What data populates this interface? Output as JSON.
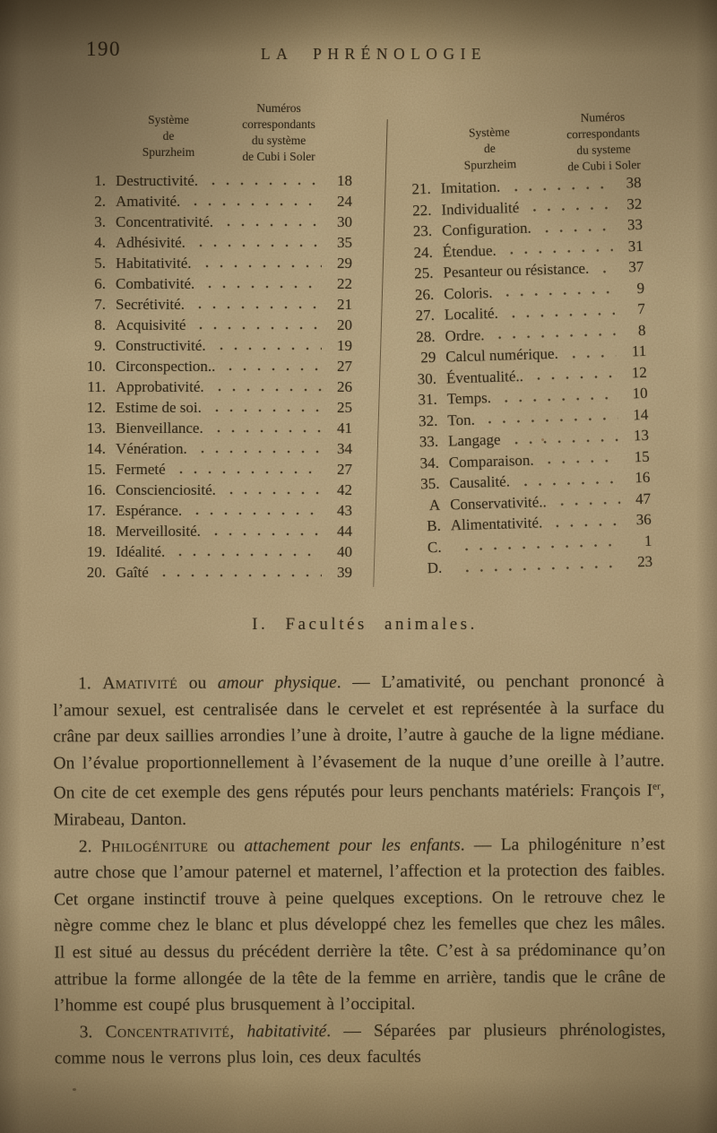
{
  "page": {
    "number": "190",
    "title": "LA PHRÉNOLOGIE"
  },
  "tables": {
    "left": {
      "header_col1": [
        "Système",
        "de",
        "Spurzheim"
      ],
      "header_col2": [
        "Numéros",
        "correspondants",
        "du système",
        "de Cubi i Soler"
      ],
      "rows": [
        {
          "num": "1.",
          "label": "Destructivité.",
          "value": "18"
        },
        {
          "num": "2.",
          "label": "Amativité.",
          "value": "24"
        },
        {
          "num": "3.",
          "label": "Concentrativité.",
          "value": "30"
        },
        {
          "num": "4.",
          "label": "Adhésivité.",
          "value": "35"
        },
        {
          "num": "5.",
          "label": "Habitativité.",
          "value": "29"
        },
        {
          "num": "6.",
          "label": "Combativité.",
          "value": "22"
        },
        {
          "num": "7.",
          "label": "Secrétivité.",
          "value": "21"
        },
        {
          "num": "8.",
          "label": "Acquisivité",
          "value": "20"
        },
        {
          "num": "9.",
          "label": "Constructivité.",
          "value": "19"
        },
        {
          "num": "10.",
          "label": "Circonspection..",
          "value": "27"
        },
        {
          "num": "11.",
          "label": "Approbativité.",
          "value": "26"
        },
        {
          "num": "12.",
          "label": "Estime de soi.",
          "value": "25"
        },
        {
          "num": "13.",
          "label": "Bienveillance.",
          "value": "41"
        },
        {
          "num": "14.",
          "label": "Vénération.",
          "value": "34"
        },
        {
          "num": "15.",
          "label": "Fermeté",
          "value": "27"
        },
        {
          "num": "16.",
          "label": "Conscienciosité.",
          "value": "42"
        },
        {
          "num": "17.",
          "label": "Espérance.",
          "value": "43"
        },
        {
          "num": "18.",
          "label": "Merveillosité.",
          "value": "44"
        },
        {
          "num": "19.",
          "label": "Idéalité.",
          "value": "40"
        },
        {
          "num": "20.",
          "label": "Gaîté",
          "value": "39"
        }
      ]
    },
    "right": {
      "header_col1": [
        "Système",
        "de",
        "Spurzheim"
      ],
      "header_col2": [
        "Numéros",
        "correspondants",
        "du systeme",
        "de Cubi i Soler"
      ],
      "rows": [
        {
          "num": "21.",
          "label": "Imitation.",
          "value": "38"
        },
        {
          "num": "22.",
          "label": "Individualité",
          "value": "32"
        },
        {
          "num": "23.",
          "label": "Configuration.",
          "value": "33"
        },
        {
          "num": "24.",
          "label": "Étendue.",
          "value": "31"
        },
        {
          "num": "25.",
          "label": "Pesanteur ou résistance.",
          "value": "37"
        },
        {
          "num": "26.",
          "label": "Coloris.",
          "value": "9"
        },
        {
          "num": "27.",
          "label": "Localité.",
          "value": "7"
        },
        {
          "num": "28.",
          "label": "Ordre.",
          "value": "8"
        },
        {
          "num": "29",
          "label": "Calcul numérique.",
          "value": "11"
        },
        {
          "num": "30.",
          "label": "Éventualité..",
          "value": "12"
        },
        {
          "num": "31.",
          "label": "Temps.",
          "value": "10"
        },
        {
          "num": "32.",
          "label": "Ton.",
          "value": "14"
        },
        {
          "num": "33.",
          "label": "Langage",
          "value": "13"
        },
        {
          "num": "34.",
          "label": "Comparaison.",
          "value": "15"
        },
        {
          "num": "35.",
          "label": "Causalité.",
          "value": "16"
        },
        {
          "num": "A",
          "label": "Conservativité..",
          "value": "47"
        },
        {
          "num": "B.",
          "label": "Alimentativité.",
          "value": "36"
        },
        {
          "num": "C.",
          "label": "",
          "value": "1"
        },
        {
          "num": "D.",
          "label": "",
          "value": "23"
        }
      ]
    }
  },
  "section": {
    "heading": "I. Facultés animales."
  },
  "paragraphs": [
    {
      "segments": [
        {
          "style": "normal",
          "text": "1. "
        },
        {
          "style": "smallcaps",
          "text": "Amativité"
        },
        {
          "style": "normal",
          "text": " ou "
        },
        {
          "style": "italic",
          "text": "amour physique"
        },
        {
          "style": "normal",
          "text": ". — L’amativité, ou penchant prononcé à l’amour sexuel, est centralisée dans le cervelet et est représentée à la surface du crâne par deux saillies arrondies l’une à droite, l’autre à gauche de la ligne médiane. On l’évalue proportionnellement à l’évasement de la nuque d’une oreille à l’autre. On cite de cet exemple des gens réputés pour leurs penchants matériels: François I"
        },
        {
          "style": "sup",
          "text": "er"
        },
        {
          "style": "normal",
          "text": ", Mirabeau, Danton."
        }
      ]
    },
    {
      "segments": [
        {
          "style": "normal",
          "text": "2. "
        },
        {
          "style": "smallcaps",
          "text": "Philogéniture"
        },
        {
          "style": "normal",
          "text": " ou "
        },
        {
          "style": "italic",
          "text": "attachement pour les enfants"
        },
        {
          "style": "normal",
          "text": ". — La philogéniture n’est autre chose que l’amour paternel et maternel, l’affection et la protection des faibles. Cet organe instinctif trouve à peine quelques exceptions. On le retrouve chez le nègre comme chez le blanc et plus développé chez les femelles que chez les mâles. Il est situé au dessus du précédent derrière la tête. C’est à sa prédominance qu’on attribue la forme allongée de la tête de la femme en arrière, tandis que le crâne de l’homme est coupé plus brusquement à l’occipital."
        }
      ]
    },
    {
      "segments": [
        {
          "style": "normal",
          "text": "3. "
        },
        {
          "style": "smallcaps",
          "text": "Concentrativité"
        },
        {
          "style": "normal",
          "text": ", "
        },
        {
          "style": "italic",
          "text": "habitativité"
        },
        {
          "style": "normal",
          "text": ". — Séparées par plusieurs phrénologistes, comme nous le verrons plus loin, ces deux facultés"
        }
      ]
    }
  ]
}
